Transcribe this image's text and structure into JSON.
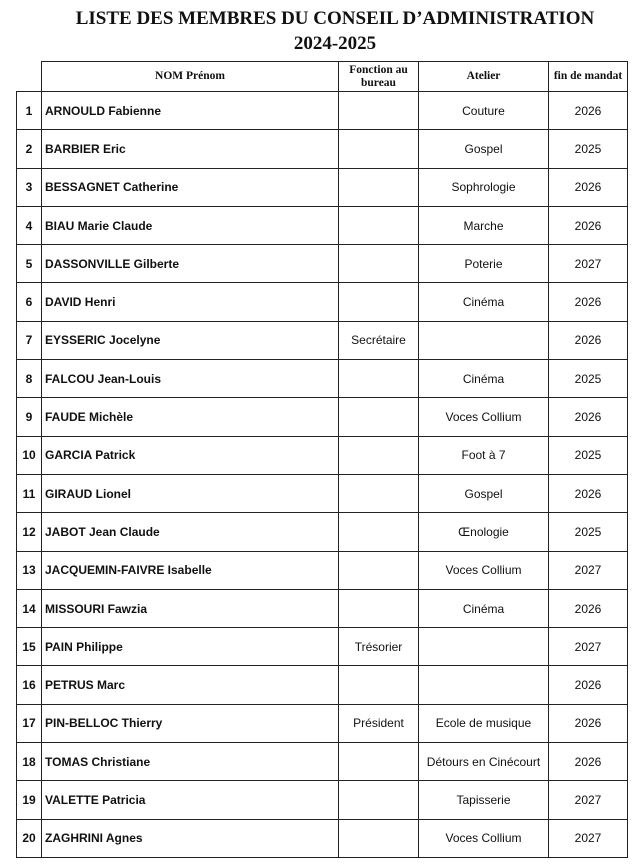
{
  "title": "LISTE DES MEMBRES DU CONSEIL D’ADMINISTRATION",
  "subtitle": "2024-2025",
  "columns": [
    "NOM Prénom",
    "Fonction au bureau",
    "Atelier",
    "fin de mandat"
  ],
  "rows": [
    {
      "n": "1",
      "name": "ARNOULD Fabienne",
      "fonction": "",
      "atelier": "Couture",
      "fin": "2026"
    },
    {
      "n": "2",
      "name": "BARBIER Eric",
      "fonction": "",
      "atelier": "Gospel",
      "fin": "2025"
    },
    {
      "n": "3",
      "name": "BESSAGNET Catherine",
      "fonction": "",
      "atelier": "Sophrologie",
      "fin": "2026"
    },
    {
      "n": "4",
      "name": "BIAU Marie Claude",
      "fonction": "",
      "atelier": "Marche",
      "fin": "2026"
    },
    {
      "n": "5",
      "name": "DASSONVILLE Gilberte",
      "fonction": "",
      "atelier": "Poterie",
      "fin": "2027"
    },
    {
      "n": "6",
      "name": "DAVID Henri",
      "fonction": "",
      "atelier": "Cinéma",
      "fin": "2026"
    },
    {
      "n": "7",
      "name": "EYSSERIC Jocelyne",
      "fonction": "Secrétaire",
      "atelier": "",
      "fin": "2026"
    },
    {
      "n": "8",
      "name": "FALCOU Jean-Louis",
      "fonction": "",
      "atelier": "Cinéma",
      "fin": "2025"
    },
    {
      "n": "9",
      "name": "FAUDE Michèle",
      "fonction": "",
      "atelier": "Voces Collium",
      "fin": "2026"
    },
    {
      "n": "10",
      "name": "GARCIA Patrick",
      "fonction": "",
      "atelier": "Foot à 7",
      "fin": "2025"
    },
    {
      "n": "11",
      "name": "GIRAUD Lionel",
      "fonction": "",
      "atelier": "Gospel",
      "fin": "2026"
    },
    {
      "n": "12",
      "name": "JABOT Jean Claude",
      "fonction": "",
      "atelier": "Œnologie",
      "fin": "2025"
    },
    {
      "n": "13",
      "name": "JACQUEMIN-FAIVRE Isabelle",
      "fonction": "",
      "atelier": "Voces Collium",
      "fin": "2027"
    },
    {
      "n": "14",
      "name": "MISSOURI Fawzia",
      "fonction": "",
      "atelier": "Cinéma",
      "fin": "2026"
    },
    {
      "n": "15",
      "name": "PAIN Philippe",
      "fonction": "Trésorier",
      "atelier": "",
      "fin": "2027"
    },
    {
      "n": "16",
      "name": "PETRUS Marc",
      "fonction": "",
      "atelier": "",
      "fin": "2026"
    },
    {
      "n": "17",
      "name": "PIN-BELLOC Thierry",
      "fonction": "Président",
      "atelier": "Ecole de musique",
      "fin": "2026"
    },
    {
      "n": "18",
      "name": "TOMAS Christiane",
      "fonction": "",
      "atelier": "Détours en Cinécourt",
      "fin": "2026"
    },
    {
      "n": "19",
      "name": "VALETTE Patricia",
      "fonction": "",
      "atelier": "Tapisserie",
      "fin": "2027"
    },
    {
      "n": "20",
      "name": "ZAGHRINI Agnes",
      "fonction": "",
      "atelier": "Voces Collium",
      "fin": "2027"
    }
  ]
}
